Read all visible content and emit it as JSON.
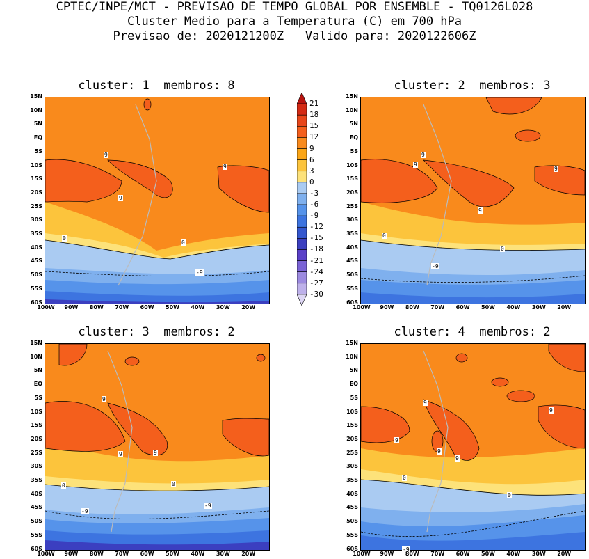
{
  "header": {
    "line1": "CPTEC/INPE/MCT - PREVISAO DE TEMPO GLOBAL POR ENSEMBLE - TQ0126L028",
    "line2": "Cluster Medio para a Temperatura (C) em 700 hPa",
    "line3": "Previsao de: 2020121200Z   Valido para: 2020122606Z"
  },
  "panels": [
    {
      "title": "cluster: 1  membros: 8",
      "labels": [
        "9",
        "9",
        "9",
        "0",
        "0",
        "-9"
      ]
    },
    {
      "title": "cluster: 2  membros: 3",
      "labels": [
        "9",
        "9",
        "9",
        "9",
        "0",
        "0",
        "-9"
      ]
    },
    {
      "title": "cluster: 3  membros: 2",
      "labels": [
        "9",
        "9",
        "9",
        "0",
        "0",
        "-9",
        "-9"
      ]
    },
    {
      "title": "cluster: 4  membros: 2",
      "labels": [
        "9",
        "9",
        "9",
        "9",
        "9",
        "0",
        "0",
        "-9"
      ]
    }
  ],
  "axes": {
    "lat_ticks": [
      "15N",
      "10N",
      "5N",
      "EQ",
      "5S",
      "10S",
      "15S",
      "20S",
      "25S",
      "30S",
      "35S",
      "40S",
      "45S",
      "50S",
      "55S",
      "60S"
    ],
    "lon_ticks": [
      "100W",
      "90W",
      "80W",
      "70W",
      "60W",
      "50W",
      "40W",
      "30W",
      "20W"
    ]
  },
  "colorbar": {
    "labels": [
      "21",
      "18",
      "15",
      "12",
      "9",
      "6",
      "3",
      "0",
      "-3",
      "-6",
      "-9",
      "-12",
      "-15",
      "-18",
      "-21",
      "-24",
      "-27",
      "-30"
    ],
    "colors": [
      "#b8130f",
      "#d42a14",
      "#e8461a",
      "#f45f1c",
      "#f98a1c",
      "#fba515",
      "#fcc43c",
      "#fde27a",
      "#aacbf2",
      "#7fb0ee",
      "#5693ea",
      "#3d74e0",
      "#3457cf",
      "#3b3fc0",
      "#5a40c8",
      "#7a63d6",
      "#9c8ae0",
      "#bdb0ea",
      "#ddd6f4"
    ]
  }
}
